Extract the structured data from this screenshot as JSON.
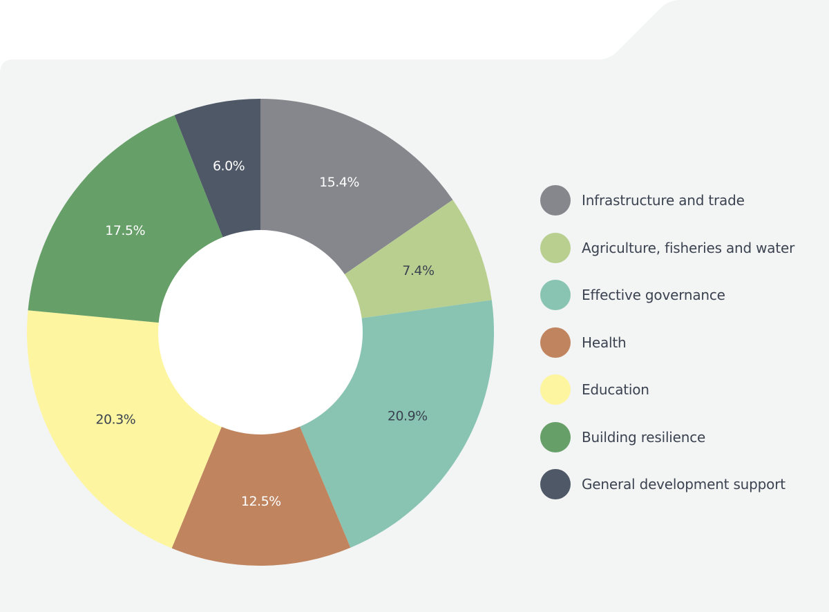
{
  "chart_data": {
    "type": "pie",
    "donut": true,
    "categories": [
      "Infrastructure and trade",
      "Agriculture, fisheries and water",
      "Effective governance",
      "Health",
      "Education",
      "Building resilience",
      "General development support"
    ],
    "values": [
      15.4,
      7.4,
      20.9,
      12.5,
      20.3,
      17.5,
      6.0
    ],
    "labels": [
      "15.4%",
      "7.4%",
      "20.9%",
      "12.5%",
      "20.3%",
      "17.5%",
      "6.0%"
    ],
    "colors": [
      "#86878c",
      "#b9cf90",
      "#89c4b3",
      "#c0845f",
      "#fdf5a0",
      "#669f68",
      "#4f5866"
    ],
    "label_colors": [
      "#ffffff",
      "#3b4250",
      "#3b4250",
      "#ffffff",
      "#3b4250",
      "#ffffff",
      "#ffffff"
    ],
    "start": "12 o'clock",
    "direction": "clockwise",
    "legend_position": "right"
  },
  "legend": {
    "items": [
      {
        "label": "Infrastructure and trade",
        "color": "#86878c"
      },
      {
        "label": "Agriculture, fisheries and water",
        "color": "#b9cf90"
      },
      {
        "label": "Effective governance",
        "color": "#89c4b3"
      },
      {
        "label": "Health",
        "color": "#c0845f"
      },
      {
        "label": "Education",
        "color": "#fdf5a0"
      },
      {
        "label": "Building resilience",
        "color": "#669f68"
      },
      {
        "label": "General development support",
        "color": "#4f5866"
      }
    ]
  },
  "colors": {
    "panel_background": "#f3f4f4",
    "page_background": "#ffffff",
    "text": "#3b4250"
  }
}
